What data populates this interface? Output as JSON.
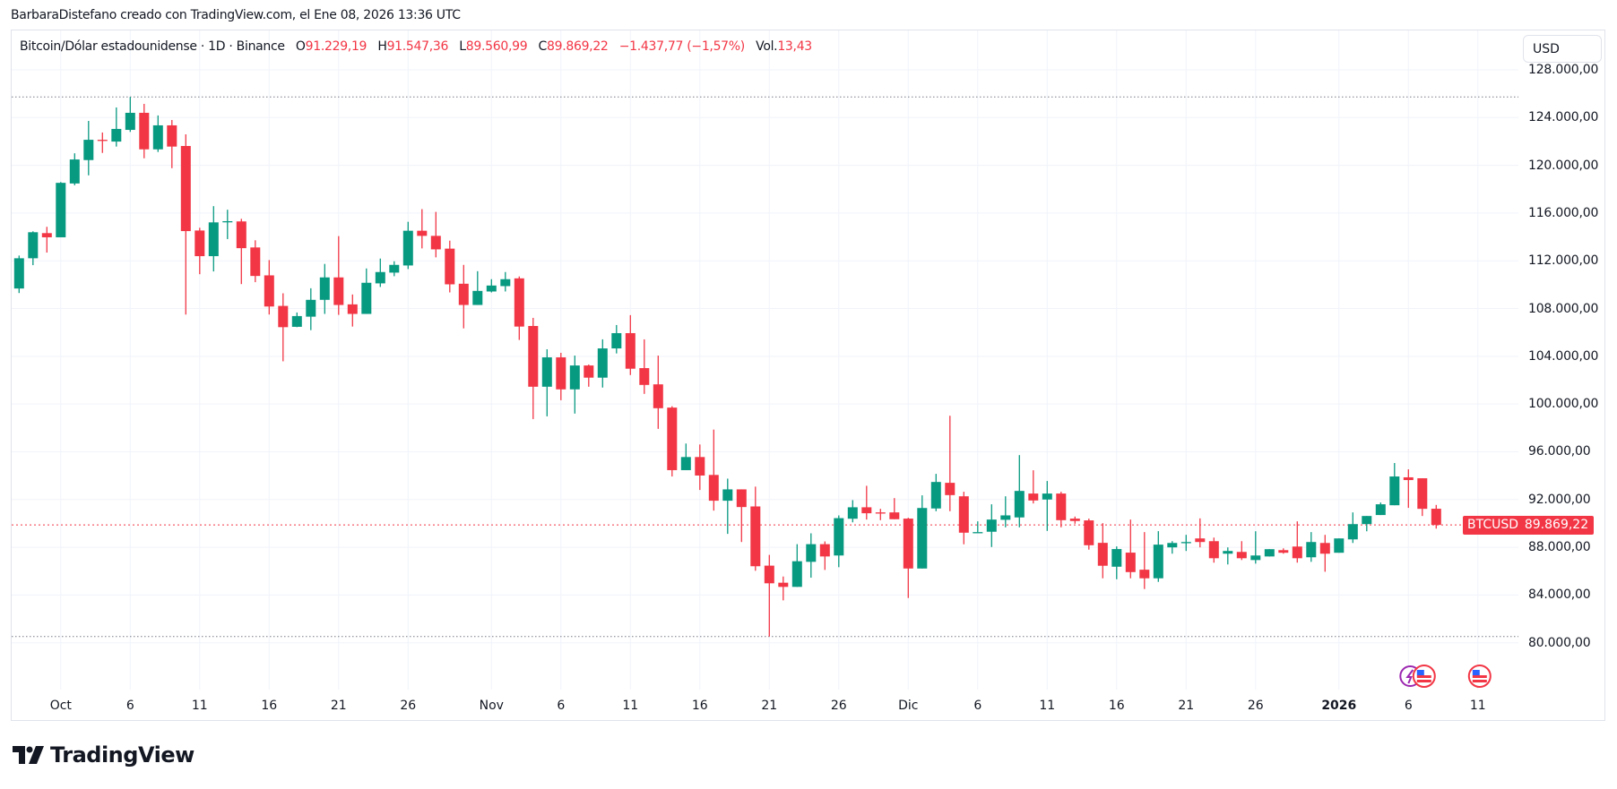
{
  "attribution": "BarbaraDistefano creado con TradingView.com, el Ene 08, 2026 13:36 UTC",
  "legend": {
    "symbol": "Bitcoin/Dólar estadounidense · 1D · Binance",
    "o_label": "O",
    "o": "91.229,19",
    "h_label": "H",
    "h": "91.547,36",
    "l_label": "L",
    "l": "89.560,99",
    "c_label": "C",
    "c": "89.869,22",
    "change": "−1.437,77 (−1,57%)",
    "vol_label": "Vol.",
    "vol": "13,43"
  },
  "currency_button": "USD",
  "last_price": {
    "symbol": "BTCUSD",
    "value": "89.869,22"
  },
  "colors": {
    "up": "#089981",
    "down": "#F23645",
    "grid": "#f0f3fa",
    "text": "#131722"
  },
  "logo_text": "TradingView",
  "chart_data": {
    "type": "candlestick",
    "title": "Bitcoin/Dólar estadounidense · 1D · Binance",
    "start_date": "2025-09-28",
    "ylim": [
      76000,
      130000
    ],
    "last_price": 89869.22,
    "high_marker": 125730,
    "low_marker": 80520,
    "y_ticks": [
      "128.000,00",
      "124.000,00",
      "120.000,00",
      "116.000,00",
      "112.000,00",
      "108.000,00",
      "104.000,00",
      "100.000,00",
      "96.000,00",
      "92.000,00",
      "88.000,00",
      "84.000,00",
      "80.000,00"
    ],
    "y_tick_values": [
      128000,
      124000,
      120000,
      116000,
      112000,
      108000,
      104000,
      100000,
      96000,
      92000,
      88000,
      84000,
      80000
    ],
    "x_ticks": [
      {
        "label": "Oct",
        "index": 3,
        "bold": false
      },
      {
        "label": "6",
        "index": 8
      },
      {
        "label": "11",
        "index": 13
      },
      {
        "label": "16",
        "index": 18
      },
      {
        "label": "21",
        "index": 23
      },
      {
        "label": "26",
        "index": 28
      },
      {
        "label": "Nov",
        "index": 34
      },
      {
        "label": "6",
        "index": 39
      },
      {
        "label": "11",
        "index": 44
      },
      {
        "label": "16",
        "index": 49
      },
      {
        "label": "21",
        "index": 54
      },
      {
        "label": "26",
        "index": 59
      },
      {
        "label": "Dic",
        "index": 64
      },
      {
        "label": "6",
        "index": 69
      },
      {
        "label": "11",
        "index": 74
      },
      {
        "label": "16",
        "index": 79
      },
      {
        "label": "21",
        "index": 84
      },
      {
        "label": "26",
        "index": 89
      },
      {
        "label": "2026",
        "index": 95,
        "bold": true
      },
      {
        "label": "6",
        "index": 100
      },
      {
        "label": "11",
        "index": 105
      }
    ],
    "events": [
      {
        "type": "crypto-event",
        "index": 100
      },
      {
        "type": "us-economic-event",
        "index": 101
      },
      {
        "type": "us-economic-event",
        "index": 105
      }
    ],
    "ohlc": [
      [
        109680,
        112440,
        109300,
        112213
      ],
      [
        112213,
        114470,
        111636,
        114394
      ],
      [
        114320,
        114850,
        112690,
        113970
      ],
      [
        113970,
        118600,
        113970,
        118533
      ],
      [
        118480,
        121010,
        118330,
        120490
      ],
      [
        120440,
        123720,
        119160,
        122140
      ],
      [
        122140,
        122750,
        121040,
        122090
      ],
      [
        121990,
        124850,
        121570,
        123050
      ],
      [
        122970,
        125730,
        122800,
        124400
      ],
      [
        124400,
        125150,
        120590,
        121340
      ],
      [
        121340,
        124180,
        121120,
        123350
      ],
      [
        123350,
        123800,
        119760,
        121570
      ],
      [
        121620,
        122600,
        107500,
        114490
      ],
      [
        114540,
        114770,
        110880,
        112390
      ],
      [
        112390,
        116580,
        111110,
        115220
      ],
      [
        115270,
        116280,
        113820,
        115320
      ],
      [
        115300,
        115520,
        110050,
        113060
      ],
      [
        113120,
        113720,
        110210,
        110730
      ],
      [
        110780,
        112060,
        107500,
        108170
      ],
      [
        108220,
        109280,
        103580,
        106440
      ],
      [
        106470,
        107670,
        106440,
        107370
      ],
      [
        107320,
        109700,
        106190,
        108730
      ],
      [
        108730,
        111740,
        107550,
        110610
      ],
      [
        110610,
        114070,
        107470,
        108300
      ],
      [
        108350,
        109180,
        106490,
        107550
      ],
      [
        107550,
        111360,
        107550,
        110160
      ],
      [
        110110,
        112190,
        109810,
        111060
      ],
      [
        111010,
        111960,
        110710,
        111660
      ],
      [
        111610,
        115270,
        111310,
        114520
      ],
      [
        114520,
        116330,
        113040,
        114090
      ],
      [
        114090,
        116100,
        112290,
        112960
      ],
      [
        113020,
        113690,
        109350,
        110030
      ],
      [
        110080,
        111660,
        106340,
        108300
      ],
      [
        108300,
        111130,
        108300,
        109480
      ],
      [
        109430,
        110460,
        109350,
        109930
      ],
      [
        109880,
        111060,
        109430,
        110460
      ],
      [
        110530,
        110690,
        105370,
        106490
      ],
      [
        106540,
        107220,
        98740,
        101450
      ],
      [
        101450,
        104590,
        98970,
        103910
      ],
      [
        103910,
        104290,
        100320,
        101230
      ],
      [
        101230,
        104060,
        99200,
        103230
      ],
      [
        103230,
        103310,
        101450,
        102210
      ],
      [
        102210,
        105420,
        101380,
        104660
      ],
      [
        104660,
        106620,
        104240,
        105940
      ],
      [
        105940,
        107450,
        102430,
        102960
      ],
      [
        103010,
        105420,
        100850,
        101600
      ],
      [
        101650,
        104060,
        97920,
        99650
      ],
      [
        99700,
        99820,
        93930,
        94460
      ],
      [
        94460,
        96690,
        94460,
        95560
      ],
      [
        95560,
        96610,
        92800,
        94010
      ],
      [
        94060,
        97860,
        91070,
        91900
      ],
      [
        91900,
        93750,
        89120,
        92850
      ],
      [
        92850,
        92850,
        88440,
        91370
      ],
      [
        91420,
        93080,
        86030,
        86410
      ],
      [
        86460,
        87360,
        80520,
        84980
      ],
      [
        85030,
        85550,
        83550,
        84680
      ],
      [
        84680,
        88260,
        84680,
        86830
      ],
      [
        86780,
        89170,
        85450,
        88260
      ],
      [
        88260,
        88490,
        86100,
        87230
      ],
      [
        87310,
        90670,
        86330,
        90440
      ],
      [
        90390,
        91950,
        90090,
        91350
      ],
      [
        91350,
        93150,
        90320,
        90850
      ],
      [
        90920,
        91220,
        90270,
        90870
      ],
      [
        90920,
        92120,
        90350,
        90350
      ],
      [
        90400,
        90470,
        83750,
        86220
      ],
      [
        86220,
        92350,
        86220,
        91290
      ],
      [
        91250,
        94150,
        91020,
        93470
      ],
      [
        93400,
        99020,
        91020,
        92370
      ],
      [
        92270,
        92650,
        88250,
        89220
      ],
      [
        89250,
        90170,
        89250,
        89270
      ],
      [
        89300,
        91600,
        88020,
        90320
      ],
      [
        90300,
        92270,
        89670,
        90670
      ],
      [
        90500,
        95720,
        89670,
        92720
      ],
      [
        92500,
        94450,
        91670,
        91920
      ],
      [
        92000,
        93550,
        89370,
        92500
      ],
      [
        92500,
        92650,
        89670,
        90270
      ],
      [
        90400,
        90570,
        89970,
        90200
      ],
      [
        90250,
        90400,
        87800,
        88170
      ],
      [
        88370,
        90020,
        85400,
        86450
      ],
      [
        86370,
        88070,
        85320,
        87850
      ],
      [
        87550,
        90320,
        85400,
        85920
      ],
      [
        86120,
        89270,
        84500,
        85400
      ],
      [
        85400,
        89350,
        85100,
        88220
      ],
      [
        87990,
        88510,
        87460,
        88360
      ],
      [
        88340,
        89040,
        87690,
        88440
      ],
      [
        88740,
        90420,
        87990,
        88440
      ],
      [
        88510,
        88810,
        86710,
        87080
      ],
      [
        87460,
        87990,
        86560,
        87690
      ],
      [
        87610,
        88510,
        86930,
        87080
      ],
      [
        86930,
        89340,
        86630,
        87310
      ],
      [
        87230,
        87840,
        87230,
        87840
      ],
      [
        87760,
        87910,
        87460,
        87540
      ],
      [
        88060,
        90170,
        86710,
        87080
      ],
      [
        87160,
        89270,
        86780,
        88440
      ],
      [
        88360,
        89040,
        85950,
        87460
      ],
      [
        87540,
        88740,
        87540,
        88740
      ],
      [
        88660,
        90920,
        88360,
        89940
      ],
      [
        89940,
        90620,
        89340,
        90620
      ],
      [
        90700,
        91750,
        90700,
        91600
      ],
      [
        91520,
        95060,
        91520,
        93930
      ],
      [
        93860,
        94530,
        91300,
        93630
      ],
      [
        93780,
        93780,
        90620,
        91220
      ],
      [
        91229.19,
        91547.36,
        89560.99,
        89869.22
      ]
    ]
  }
}
